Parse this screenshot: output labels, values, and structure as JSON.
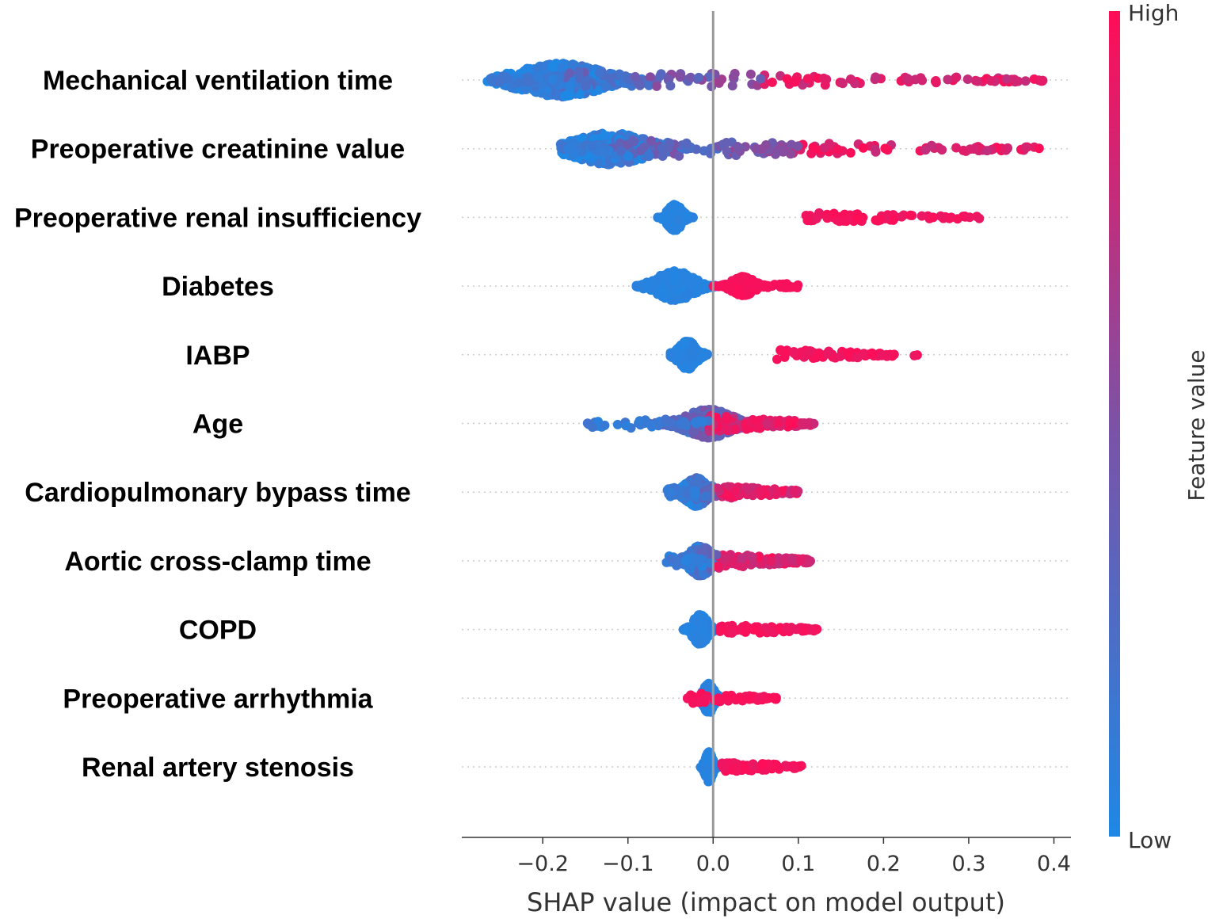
{
  "chart_data": {
    "type": "scatter",
    "subtype": "shap-beeswarm",
    "xlabel": "SHAP value (impact on model output)",
    "xlim": [
      -0.295,
      0.42
    ],
    "xticks": [
      {
        "value": -0.2,
        "label": "−0.2"
      },
      {
        "value": -0.1,
        "label": "−0.1"
      },
      {
        "value": 0.0,
        "label": "0.0"
      },
      {
        "value": 0.1,
        "label": "0.1"
      },
      {
        "value": 0.2,
        "label": "0.2"
      },
      {
        "value": 0.3,
        "label": "0.3"
      },
      {
        "value": 0.4,
        "label": "0.4"
      }
    ],
    "colorbar": {
      "label": "Feature value",
      "high": "High",
      "low": "Low",
      "low_color": "#1e88e5",
      "high_color": "#ff0d57"
    },
    "features": [
      {
        "name": "Mechanical ventilation time",
        "min": -0.265,
        "max": 0.39,
        "mode": -0.18,
        "spread": 0.045,
        "height": 0.45,
        "kind": "continuous",
        "high_from": 0.06
      },
      {
        "name": "Preoperative creatinine value",
        "min": -0.18,
        "max": 0.385,
        "mode": -0.12,
        "spread": 0.04,
        "height": 0.42,
        "kind": "continuous",
        "high_from": 0.1
      },
      {
        "name": "Preoperative renal insufficiency",
        "min": -0.065,
        "max": 0.32,
        "mode": -0.045,
        "spread": 0.008,
        "height": 0.35,
        "kind": "binary",
        "high_min": 0.105,
        "high_max": 0.315
      },
      {
        "name": "Diabetes",
        "min": -0.09,
        "max": 0.1,
        "mode": -0.045,
        "spread": 0.02,
        "height": 0.4,
        "kind": "binary-two",
        "high_min": 0.0,
        "high_max": 0.1,
        "high_mode": 0.035
      },
      {
        "name": "IABP",
        "min": -0.05,
        "max": 0.24,
        "mode": -0.03,
        "spread": 0.01,
        "height": 0.38,
        "kind": "binary",
        "high_min": 0.075,
        "high_max": 0.24
      },
      {
        "name": "Age",
        "min": -0.15,
        "max": 0.12,
        "mode": -0.005,
        "spread": 0.025,
        "height": 0.38,
        "kind": "continuous",
        "high_from": -0.01
      },
      {
        "name": "Cardiopulmonary bypass time",
        "min": -0.055,
        "max": 0.1,
        "mode": -0.02,
        "spread": 0.012,
        "height": 0.38,
        "kind": "continuous",
        "high_from": 0.005
      },
      {
        "name": "Aortic cross-clamp time",
        "min": -0.055,
        "max": 0.115,
        "mode": -0.015,
        "spread": 0.012,
        "height": 0.4,
        "kind": "continuous",
        "high_from": 0.005
      },
      {
        "name": "COPD",
        "min": -0.035,
        "max": 0.125,
        "mode": -0.015,
        "spread": 0.008,
        "height": 0.4,
        "kind": "binary",
        "high_min": 0.005,
        "high_max": 0.125
      },
      {
        "name": "Preoperative arrhythmia",
        "min": -0.04,
        "max": 0.075,
        "mode": -0.005,
        "spread": 0.006,
        "height": 0.4,
        "kind": "binary",
        "high_min": -0.03,
        "high_max": 0.075
      },
      {
        "name": "Renal artery stenosis",
        "min": -0.02,
        "max": 0.105,
        "mode": -0.005,
        "spread": 0.004,
        "height": 0.4,
        "kind": "binary",
        "high_min": 0.01,
        "high_max": 0.105
      }
    ]
  }
}
